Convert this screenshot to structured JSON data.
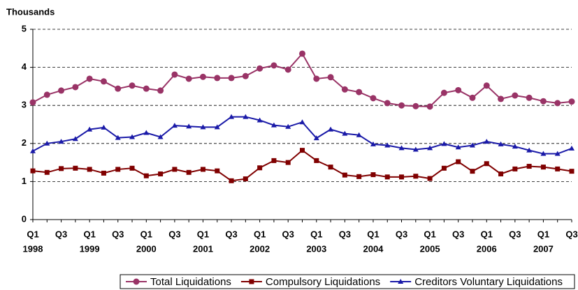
{
  "chart_data": {
    "type": "line",
    "y_axis_label": "Thousands",
    "categories": [
      "Q1",
      null,
      "Q3",
      null,
      "Q1",
      null,
      "Q3",
      null,
      "Q1",
      null,
      "Q3",
      null,
      "Q1",
      null,
      "Q3",
      null,
      "Q1",
      null,
      "Q3",
      null,
      "Q1",
      null,
      "Q3",
      null,
      "Q1",
      null,
      "Q3",
      null,
      "Q1",
      null,
      "Q3",
      null,
      "Q1",
      null,
      "Q3",
      null,
      "Q1",
      null,
      "Q3"
    ],
    "years": [
      "1998",
      "1999",
      "2000",
      "2001",
      "2002",
      "2003",
      "2004",
      "2005",
      "2006",
      "2007"
    ],
    "ylim": [
      0,
      5
    ],
    "yticks": [
      0,
      1,
      2,
      3,
      4,
      5
    ],
    "grid": true,
    "legend": "bottom",
    "series": [
      {
        "name": "Total Liquidations",
        "color": "#993366",
        "marker": "circle",
        "values": [
          3.08,
          3.28,
          3.39,
          3.48,
          3.7,
          3.63,
          3.44,
          3.52,
          3.44,
          3.39,
          3.81,
          3.7,
          3.75,
          3.72,
          3.72,
          3.77,
          3.97,
          4.05,
          3.94,
          4.36,
          3.7,
          3.74,
          3.42,
          3.35,
          3.19,
          3.06,
          3.0,
          2.98,
          2.97,
          3.33,
          3.4,
          3.2,
          3.52,
          3.17,
          3.26,
          3.2,
          3.11,
          3.06,
          3.1
        ]
      },
      {
        "name": "Compulsory Liquidations",
        "color": "#800000",
        "marker": "square",
        "values": [
          1.28,
          1.24,
          1.34,
          1.35,
          1.32,
          1.22,
          1.32,
          1.35,
          1.15,
          1.2,
          1.32,
          1.24,
          1.32,
          1.28,
          1.02,
          1.07,
          1.36,
          1.55,
          1.5,
          1.82,
          1.55,
          1.38,
          1.17,
          1.13,
          1.18,
          1.12,
          1.12,
          1.14,
          1.08,
          1.35,
          1.52,
          1.27,
          1.47,
          1.2,
          1.33,
          1.4,
          1.38,
          1.33,
          1.27
        ]
      },
      {
        "name": "Creditors Voluntary Liquidations",
        "color": "#1a1aa8",
        "marker": "triangle",
        "values": [
          1.8,
          2.0,
          2.05,
          2.12,
          2.37,
          2.42,
          2.15,
          2.17,
          2.28,
          2.17,
          2.47,
          2.45,
          2.43,
          2.43,
          2.7,
          2.7,
          2.61,
          2.48,
          2.44,
          2.56,
          2.14,
          2.37,
          2.26,
          2.22,
          1.98,
          1.95,
          1.88,
          1.84,
          1.88,
          1.99,
          1.9,
          1.95,
          2.05,
          1.98,
          1.92,
          1.82,
          1.73,
          1.73,
          1.87
        ]
      }
    ]
  }
}
